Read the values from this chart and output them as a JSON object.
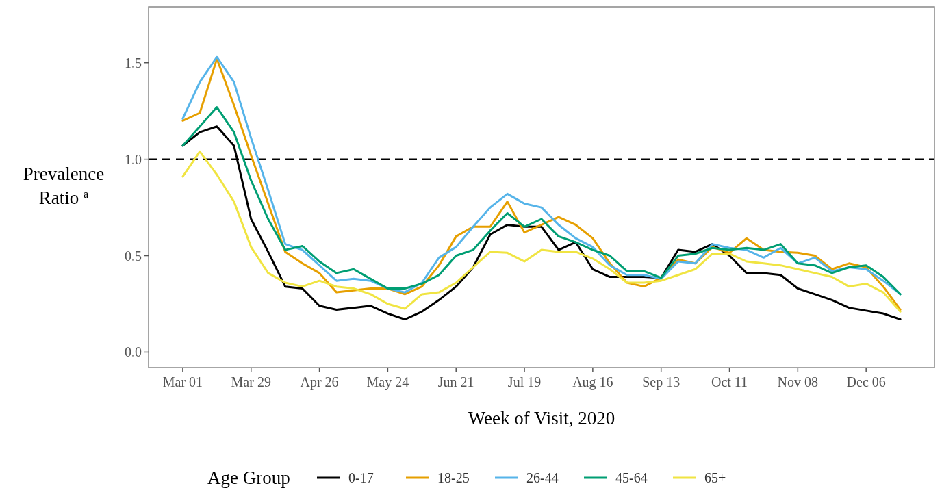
{
  "chart_data": {
    "type": "line",
    "xlabel": "Week of Visit, 2020",
    "ylabel": "Prevalence Ratio $^{a}$",
    "legend_title": "Age Group",
    "legend": "bottom",
    "grid": false,
    "line_style": "solid",
    "marker": "none",
    "x": [
      "2020-03-01",
      "2020-03-08",
      "2020-03-15",
      "2020-03-22",
      "2020-03-29",
      "2020-04-05",
      "2020-04-12",
      "2020-04-19",
      "2020-04-26",
      "2020-05-03",
      "2020-05-10",
      "2020-05-17",
      "2020-05-24",
      "2020-05-31",
      "2020-06-07",
      "2020-06-14",
      "2020-06-21",
      "2020-06-28",
      "2020-07-05",
      "2020-07-12",
      "2020-07-19",
      "2020-07-26",
      "2020-08-02",
      "2020-08-09",
      "2020-08-16",
      "2020-08-23",
      "2020-08-30",
      "2020-09-06",
      "2020-09-13",
      "2020-09-20",
      "2020-09-27",
      "2020-10-04",
      "2020-10-11",
      "2020-10-18",
      "2020-10-25",
      "2020-11-01",
      "2020-11-08",
      "2020-11-15",
      "2020-11-22",
      "2020-11-29",
      "2020-12-06",
      "2020-12-13",
      "2020-12-20"
    ],
    "xlim": [
      "2020-02-16",
      "2021-01-03"
    ],
    "xticks": [
      {
        "value": "2020-03-01",
        "label": "Mar 01"
      },
      {
        "value": "2020-03-29",
        "label": "Mar 29"
      },
      {
        "value": "2020-04-26",
        "label": "Apr 26"
      },
      {
        "value": "2020-05-24",
        "label": "May 24"
      },
      {
        "value": "2020-06-21",
        "label": "Jun 21"
      },
      {
        "value": "2020-07-19",
        "label": "Jul 19"
      },
      {
        "value": "2020-08-16",
        "label": "Aug 16"
      },
      {
        "value": "2020-09-13",
        "label": "Sep 13"
      },
      {
        "value": "2020-10-11",
        "label": "Oct 11"
      },
      {
        "value": "2020-11-08",
        "label": "Nov 08"
      },
      {
        "value": "2020-12-06",
        "label": "Dec 06"
      }
    ],
    "ylim": [
      -0.08,
      1.79
    ],
    "yticks": [
      {
        "value": 0,
        "label": "0.0"
      },
      {
        "value": 0.5,
        "label": "0.5"
      },
      {
        "value": 1,
        "label": "1.0"
      },
      {
        "value": 1.5,
        "label": "1.5"
      }
    ],
    "ref_lines": [
      {
        "axis": "y",
        "value": 1,
        "color": "#000000",
        "line_style": "dashed"
      }
    ],
    "series": [
      {
        "name": "0-17",
        "color": "#000000",
        "values": [
          1.07,
          1.14,
          1.17,
          1.07,
          0.69,
          0.52,
          0.34,
          0.33,
          0.24,
          0.22,
          0.23,
          0.24,
          0.2,
          0.17,
          0.21,
          0.27,
          0.34,
          0.44,
          0.61,
          0.66,
          0.65,
          0.65,
          0.53,
          0.57,
          0.43,
          0.39,
          0.39,
          0.39,
          0.385,
          0.53,
          0.52,
          0.56,
          0.5,
          0.41,
          0.41,
          0.4,
          0.33,
          0.3,
          0.27,
          0.23,
          0.215,
          0.2,
          0.17
        ]
      },
      {
        "name": "18-25",
        "color": "#e69f00",
        "values": [
          1.2,
          1.24,
          1.52,
          1.28,
          1.02,
          0.77,
          0.52,
          0.46,
          0.41,
          0.31,
          0.32,
          0.33,
          0.33,
          0.3,
          0.34,
          0.45,
          0.6,
          0.65,
          0.65,
          0.78,
          0.62,
          0.66,
          0.7,
          0.66,
          0.59,
          0.46,
          0.36,
          0.34,
          0.385,
          0.48,
          0.46,
          0.545,
          0.515,
          0.59,
          0.53,
          0.52,
          0.515,
          0.5,
          0.43,
          0.46,
          0.44,
          0.34,
          0.22
        ]
      },
      {
        "name": "26-44",
        "color": "#56b4e9",
        "values": [
          1.21,
          1.4,
          1.53,
          1.4,
          1.11,
          0.84,
          0.56,
          0.53,
          0.45,
          0.37,
          0.38,
          0.37,
          0.33,
          0.31,
          0.36,
          0.49,
          0.545,
          0.65,
          0.75,
          0.82,
          0.77,
          0.75,
          0.66,
          0.59,
          0.545,
          0.45,
          0.4,
          0.4,
          0.38,
          0.47,
          0.46,
          0.56,
          0.54,
          0.53,
          0.49,
          0.54,
          0.46,
          0.49,
          0.42,
          0.44,
          0.43,
          0.37,
          0.3
        ]
      },
      {
        "name": "45-64",
        "color": "#009e73",
        "values": [
          1.07,
          1.17,
          1.27,
          1.14,
          0.89,
          0.69,
          0.53,
          0.55,
          0.47,
          0.41,
          0.43,
          0.38,
          0.33,
          0.33,
          0.355,
          0.4,
          0.5,
          0.53,
          0.63,
          0.72,
          0.65,
          0.69,
          0.6,
          0.57,
          0.53,
          0.5,
          0.42,
          0.42,
          0.385,
          0.5,
          0.51,
          0.54,
          0.53,
          0.54,
          0.53,
          0.56,
          0.46,
          0.45,
          0.41,
          0.44,
          0.45,
          0.39,
          0.3
        ]
      },
      {
        "name": "65+",
        "color": "#f0e442",
        "values": [
          0.91,
          1.04,
          0.92,
          0.78,
          0.545,
          0.41,
          0.36,
          0.34,
          0.37,
          0.34,
          0.33,
          0.3,
          0.25,
          0.225,
          0.3,
          0.31,
          0.36,
          0.44,
          0.52,
          0.515,
          0.47,
          0.53,
          0.52,
          0.52,
          0.485,
          0.43,
          0.36,
          0.36,
          0.37,
          0.4,
          0.43,
          0.51,
          0.51,
          0.47,
          0.46,
          0.45,
          0.43,
          0.41,
          0.39,
          0.34,
          0.355,
          0.31,
          0.21
        ]
      }
    ]
  }
}
